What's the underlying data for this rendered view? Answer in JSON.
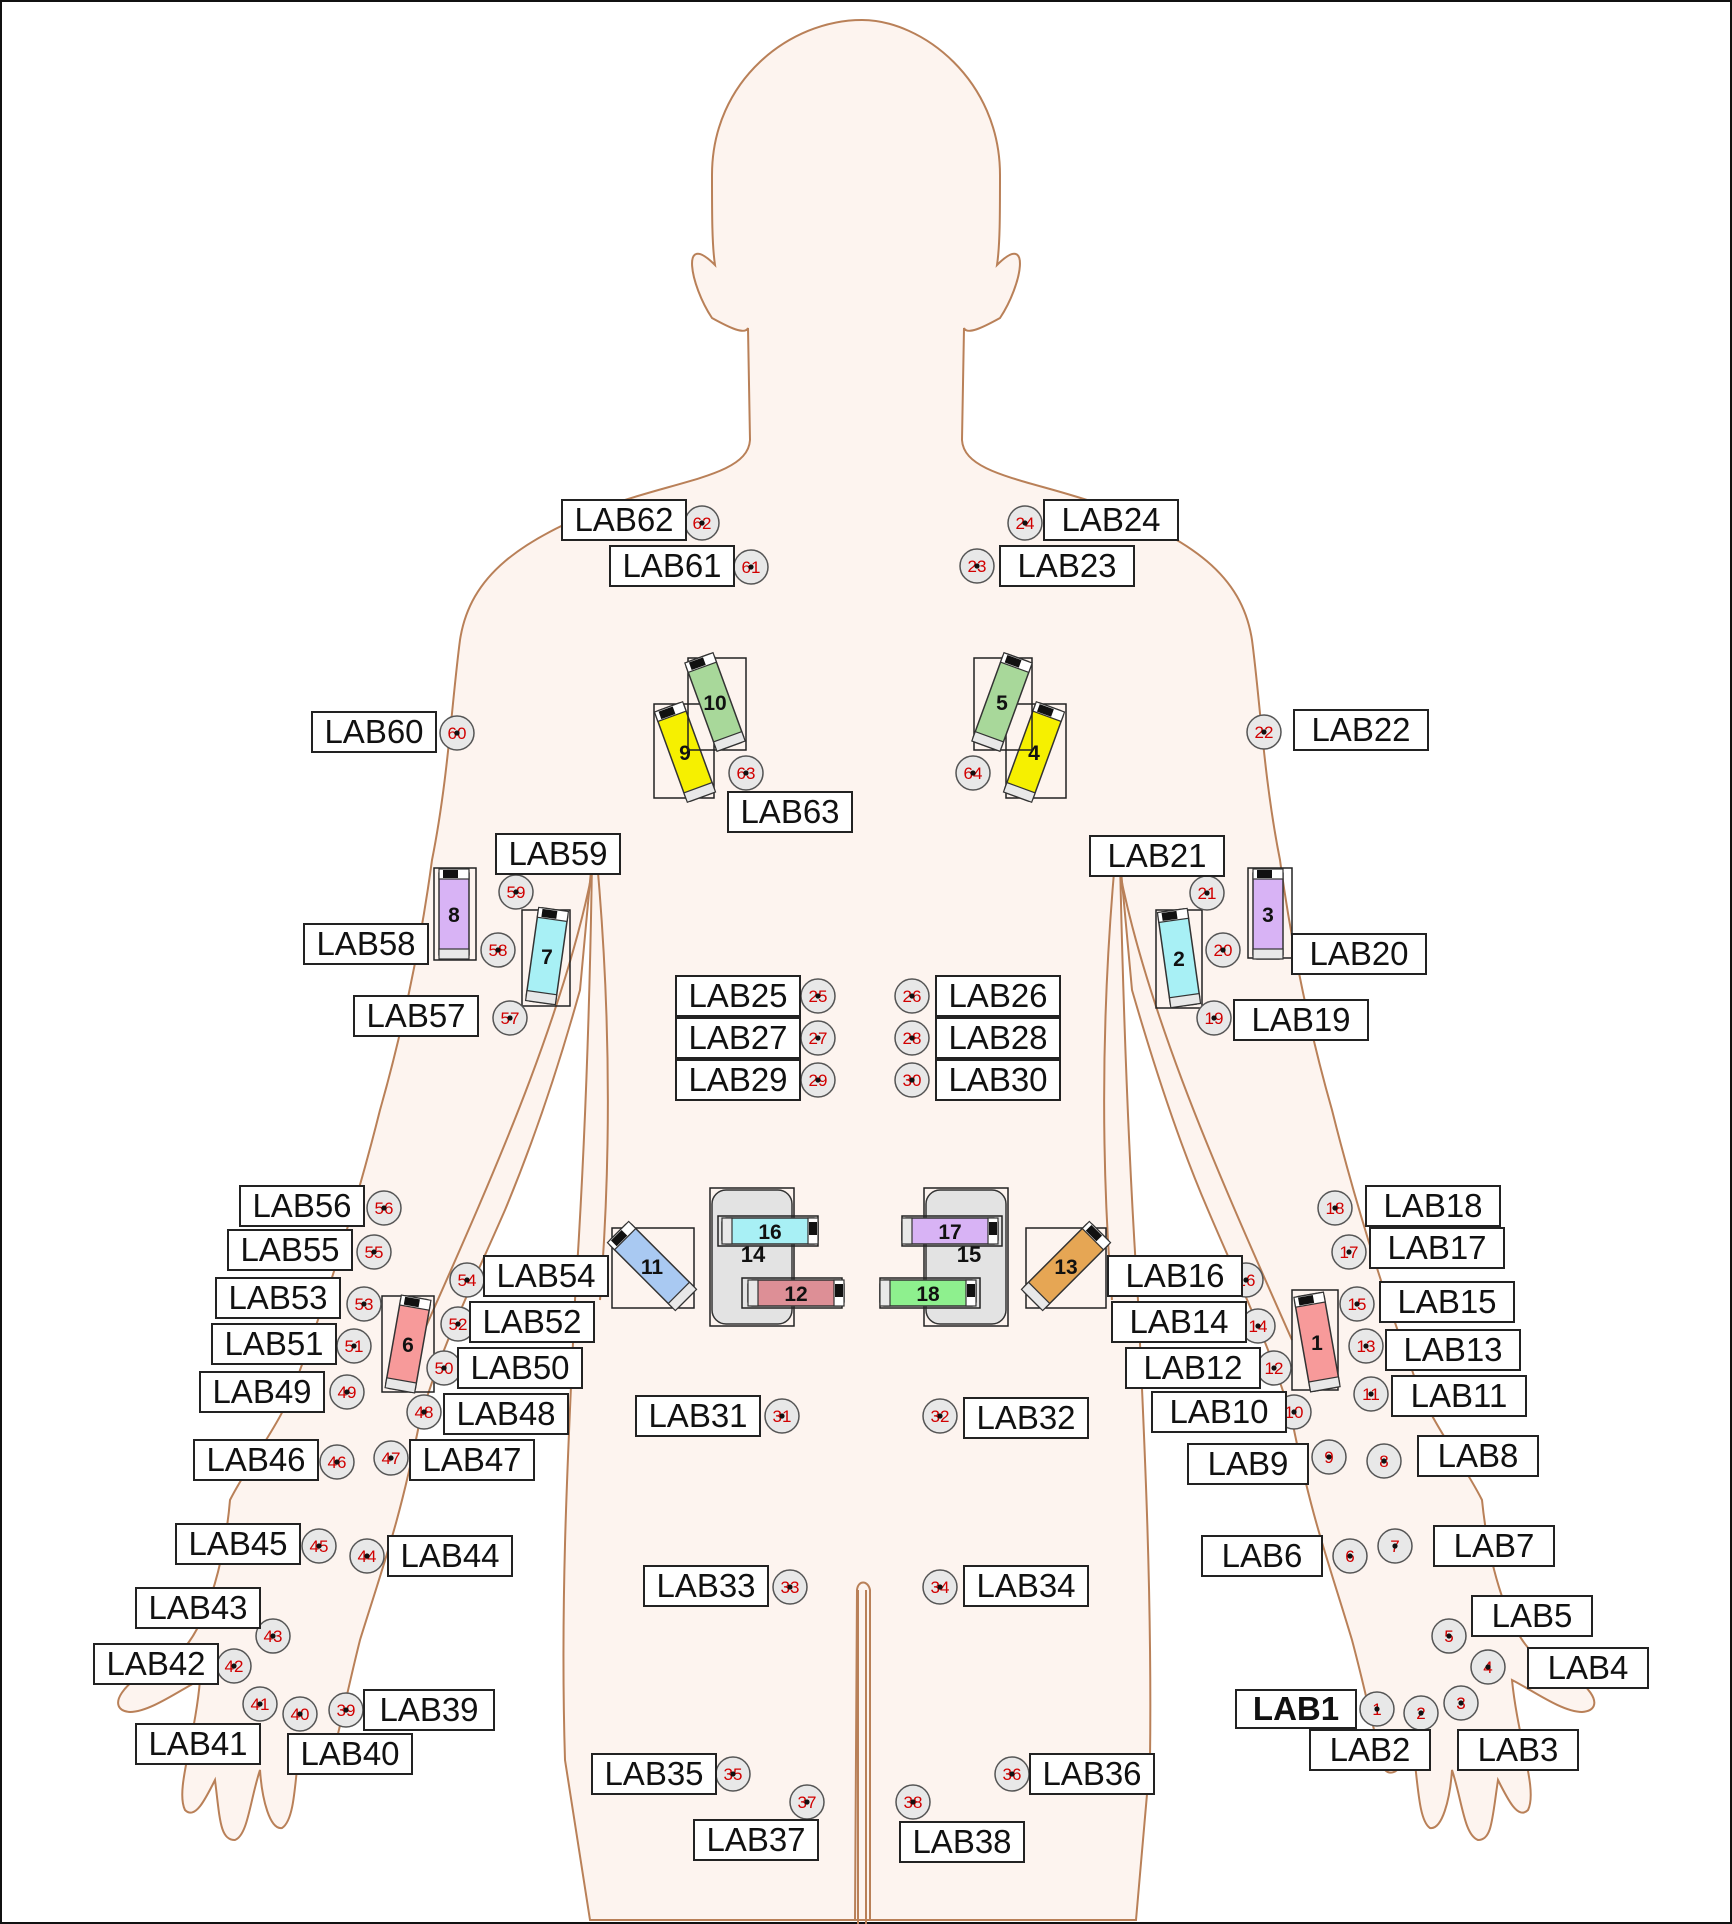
{
  "labels": [
    {
      "id": "LAB1",
      "text": "LAB1",
      "bold": true
    },
    {
      "id": "LAB2",
      "text": "LAB2"
    },
    {
      "id": "LAB3",
      "text": "LAB3"
    },
    {
      "id": "LAB4",
      "text": "LAB4"
    },
    {
      "id": "LAB5",
      "text": "LAB5"
    },
    {
      "id": "LAB6",
      "text": "LAB6"
    },
    {
      "id": "LAB7",
      "text": "LAB7"
    },
    {
      "id": "LAB8",
      "text": "LAB8"
    },
    {
      "id": "LAB9",
      "text": "LAB9"
    },
    {
      "id": "LAB10",
      "text": "LAB10"
    },
    {
      "id": "LAB11",
      "text": "LAB11"
    },
    {
      "id": "LAB12",
      "text": "LAB12"
    },
    {
      "id": "LAB13",
      "text": "LAB13"
    },
    {
      "id": "LAB14",
      "text": "LAB14"
    },
    {
      "id": "LAB15",
      "text": "LAB15"
    },
    {
      "id": "LAB16",
      "text": "LAB16"
    },
    {
      "id": "LAB17",
      "text": "LAB17"
    },
    {
      "id": "LAB18",
      "text": "LAB18"
    },
    {
      "id": "LAB19",
      "text": "LAB19"
    },
    {
      "id": "LAB20",
      "text": "LAB20"
    },
    {
      "id": "LAB21",
      "text": "LAB21"
    },
    {
      "id": "LAB22",
      "text": "LAB22"
    },
    {
      "id": "LAB23",
      "text": "LAB23"
    },
    {
      "id": "LAB24",
      "text": "LAB24"
    },
    {
      "id": "LAB25",
      "text": "LAB25"
    },
    {
      "id": "LAB26",
      "text": "LAB26"
    },
    {
      "id": "LAB27",
      "text": "LAB27"
    },
    {
      "id": "LAB28",
      "text": "LAB28"
    },
    {
      "id": "LAB29",
      "text": "LAB29"
    },
    {
      "id": "LAB30",
      "text": "LAB30"
    },
    {
      "id": "LAB31",
      "text": "LAB31"
    },
    {
      "id": "LAB32",
      "text": "LAB32"
    },
    {
      "id": "LAB33",
      "text": "LAB33"
    },
    {
      "id": "LAB34",
      "text": "LAB34"
    },
    {
      "id": "LAB35",
      "text": "LAB35"
    },
    {
      "id": "LAB36",
      "text": "LAB36"
    },
    {
      "id": "LAB37",
      "text": "LAB37"
    },
    {
      "id": "LAB38",
      "text": "LAB38"
    },
    {
      "id": "LAB39",
      "text": "LAB39"
    },
    {
      "id": "LAB40",
      "text": "LAB40"
    },
    {
      "id": "LAB41",
      "text": "LAB41"
    },
    {
      "id": "LAB42",
      "text": "LAB42"
    },
    {
      "id": "LAB43",
      "text": "LAB43"
    },
    {
      "id": "LAB44",
      "text": "LAB44"
    },
    {
      "id": "LAB45",
      "text": "LAB45"
    },
    {
      "id": "LAB46",
      "text": "LAB46"
    },
    {
      "id": "LAB47",
      "text": "LAB47"
    },
    {
      "id": "LAB48",
      "text": "LAB48"
    },
    {
      "id": "LAB49",
      "text": "LAB49"
    },
    {
      "id": "LAB50",
      "text": "LAB50"
    },
    {
      "id": "LAB51",
      "text": "LAB51"
    },
    {
      "id": "LAB52",
      "text": "LAB52"
    },
    {
      "id": "LAB53",
      "text": "LAB53"
    },
    {
      "id": "LAB54",
      "text": "LAB54"
    },
    {
      "id": "LAB55",
      "text": "LAB55"
    },
    {
      "id": "LAB56",
      "text": "LAB56"
    },
    {
      "id": "LAB57",
      "text": "LAB57"
    },
    {
      "id": "LAB58",
      "text": "LAB58"
    },
    {
      "id": "LAB59",
      "text": "LAB59"
    },
    {
      "id": "LAB60",
      "text": "LAB60"
    },
    {
      "id": "LAB61",
      "text": "LAB61"
    },
    {
      "id": "LAB62",
      "text": "LAB62"
    },
    {
      "id": "LAB63",
      "text": "LAB63"
    }
  ],
  "points": [
    "1",
    "2",
    "3",
    "4",
    "5",
    "6",
    "7",
    "8",
    "9",
    "10",
    "11",
    "12",
    "13",
    "14",
    "15",
    "16",
    "17",
    "18",
    "19",
    "20",
    "21",
    "22",
    "23",
    "24",
    "25",
    "26",
    "27",
    "28",
    "29",
    "30",
    "31",
    "32",
    "33",
    "34",
    "35",
    "36",
    "37",
    "38",
    "39",
    "40",
    "41",
    "42",
    "43",
    "44",
    "45",
    "46",
    "47",
    "48",
    "49",
    "50",
    "51",
    "52",
    "53",
    "54",
    "55",
    "56",
    "57",
    "58",
    "59",
    "60",
    "61",
    "62",
    "63",
    "64"
  ],
  "devices": [
    {
      "num": "1",
      "color": "#f79a9a"
    },
    {
      "num": "2",
      "color": "#a8f0f5"
    },
    {
      "num": "3",
      "color": "#d8b3f5"
    },
    {
      "num": "4",
      "color": "#f6f000"
    },
    {
      "num": "5",
      "color": "#a8d89a"
    },
    {
      "num": "6",
      "color": "#f79a9a"
    },
    {
      "num": "7",
      "color": "#a8f0f5"
    },
    {
      "num": "8",
      "color": "#d8b3f5"
    },
    {
      "num": "9",
      "color": "#f6f000"
    },
    {
      "num": "10",
      "color": "#a8d89a"
    },
    {
      "num": "11",
      "color": "#a9c9f2"
    },
    {
      "num": "12",
      "color": "#dd8f96"
    },
    {
      "num": "13",
      "color": "#e6a654"
    },
    {
      "num": "16",
      "color": "#a8f0f5"
    },
    {
      "num": "17",
      "color": "#d8b3f5"
    },
    {
      "num": "18",
      "color": "#8ef08e"
    }
  ],
  "groups": [
    "14",
    "15"
  ],
  "colors": {
    "skin": "#fdf4ef",
    "outline": "#b98058",
    "pointNumber": "#d10000"
  }
}
